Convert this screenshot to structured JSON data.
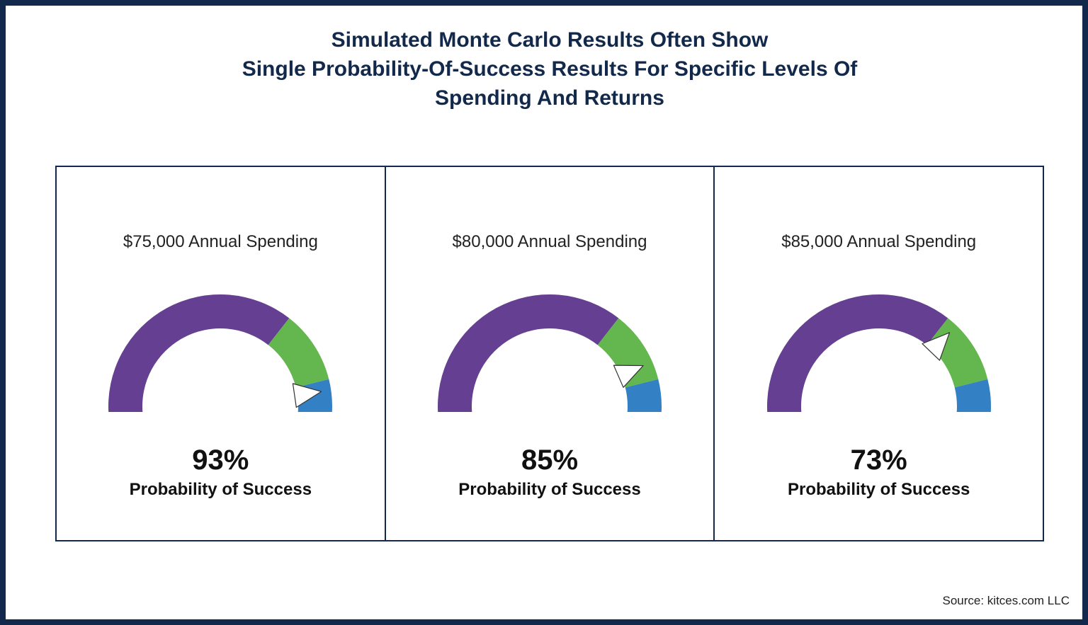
{
  "title_lines": [
    "Simulated Monte Carlo Results Often Show",
    "Single Probability-Of-Success Results For Specific Levels Of",
    "Spending And Returns"
  ],
  "source": "Source: kitces.com LLC",
  "colors": {
    "frame": "#13294b",
    "purple": "#653f91",
    "green": "#64b74f",
    "blue": "#3480c4",
    "pointer": "#ffffff"
  },
  "chart_data": [
    {
      "type": "gauge",
      "title": "$75,000 Annual Spending",
      "value": 93,
      "value_label": "93%",
      "caption": "Probability of Success",
      "range": [
        0,
        100
      ],
      "bands": [
        {
          "color": "purple",
          "from": 0,
          "to": 70
        },
        {
          "color": "green",
          "from": 70,
          "to": 90
        },
        {
          "color": "blue",
          "from": 90,
          "to": 100
        }
      ]
    },
    {
      "type": "gauge",
      "title": "$80,000 Annual Spending",
      "value": 85,
      "value_label": "85%",
      "caption": "Probability of Success",
      "range": [
        0,
        100
      ],
      "bands": [
        {
          "color": "purple",
          "from": 0,
          "to": 70
        },
        {
          "color": "green",
          "from": 70,
          "to": 90
        },
        {
          "color": "blue",
          "from": 90,
          "to": 100
        }
      ]
    },
    {
      "type": "gauge",
      "title": "$85,000 Annual Spending",
      "value": 73,
      "value_label": "73%",
      "caption": "Probability of Success",
      "range": [
        0,
        100
      ],
      "bands": [
        {
          "color": "purple",
          "from": 0,
          "to": 70
        },
        {
          "color": "green",
          "from": 70,
          "to": 90
        },
        {
          "color": "blue",
          "from": 90,
          "to": 100
        }
      ]
    }
  ]
}
